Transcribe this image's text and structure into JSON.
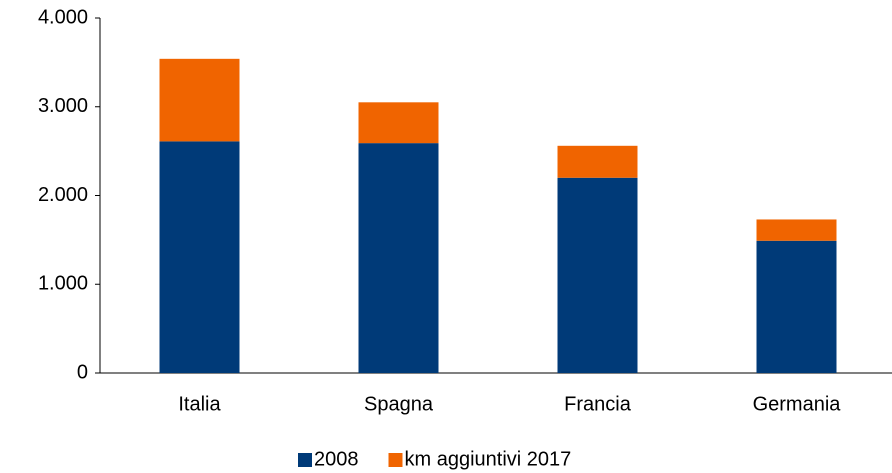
{
  "chart_data": {
    "type": "stacked_bar",
    "categories": [
      "Italia",
      "Spagna",
      "Francia",
      "Germania"
    ],
    "series": [
      {
        "name": "2008",
        "color": "#003a78",
        "values": [
          2610,
          2590,
          2200,
          1490
        ]
      },
      {
        "name": "km aggiuntivi 2017",
        "color": "#f06400",
        "values": [
          930,
          460,
          360,
          240
        ]
      }
    ],
    "ylim": [
      0,
      4000
    ],
    "yticks": [
      0,
      {
        "value": 1000,
        "label": "1.000"
      },
      {
        "value": 2000,
        "label": "2.000"
      },
      {
        "value": 3000,
        "label": "3.000"
      },
      {
        "value": 4000,
        "label": "4.000"
      }
    ],
    "grid": false,
    "legend": "bottom"
  }
}
